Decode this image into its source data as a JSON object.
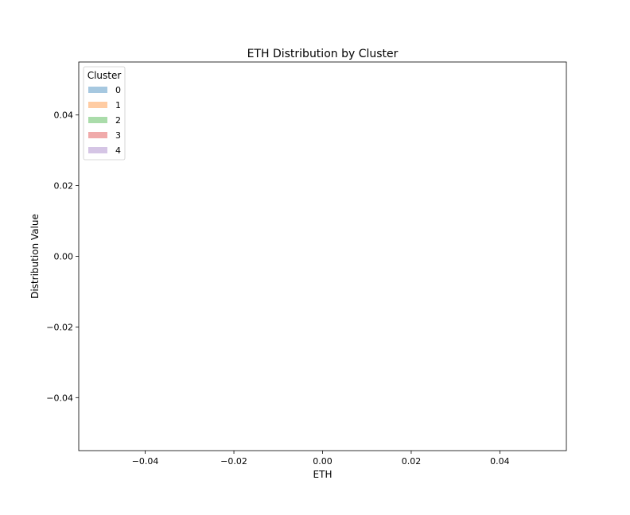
{
  "chart_data": {
    "type": "histogram",
    "title": "ETH Distribution by Cluster",
    "xlabel": "ETH",
    "ylabel": "Distribution Value",
    "xlim": [
      -0.055,
      0.055
    ],
    "ylim": [
      -0.055,
      0.055
    ],
    "x_ticks": [
      -0.04,
      -0.02,
      0.0,
      0.02,
      0.04
    ],
    "x_tick_labels": [
      "−0.04",
      "−0.02",
      "0.00",
      "0.02",
      "0.04"
    ],
    "y_ticks": [
      0.04,
      0.02,
      0.0,
      -0.02,
      -0.04
    ],
    "y_tick_labels": [
      "0.04",
      "0.02",
      "0.00",
      "−0.02",
      "−0.04"
    ],
    "grid": false,
    "legend": {
      "title": "Cluster",
      "placement": "upper-left",
      "entries": [
        {
          "label": "0",
          "color": "#a6c8e0"
        },
        {
          "label": "1",
          "color": "#ffcca3"
        },
        {
          "label": "2",
          "color": "#aadcaa"
        },
        {
          "label": "3",
          "color": "#f0aaaa"
        },
        {
          "label": "4",
          "color": "#d5c5e5"
        }
      ]
    },
    "series": [
      {
        "name": "0",
        "values": []
      },
      {
        "name": "1",
        "values": []
      },
      {
        "name": "2",
        "values": []
      },
      {
        "name": "3",
        "values": []
      },
      {
        "name": "4",
        "values": []
      }
    ]
  }
}
